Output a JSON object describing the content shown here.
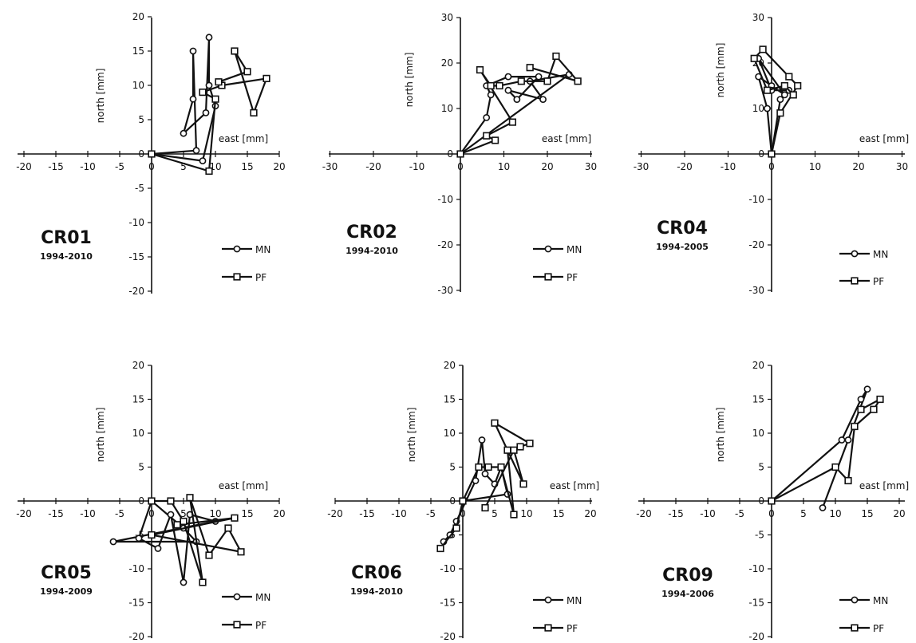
{
  "chart_data": [
    {
      "type": "line",
      "station": "CR01",
      "period": "1994-2010",
      "xlabel": "east [mm]",
      "ylabel": "north [mm]",
      "xlim": [
        -20,
        20
      ],
      "ylim": [
        -20,
        20
      ],
      "xticks": [
        -20,
        -15,
        -10,
        -5,
        0,
        5,
        10,
        15,
        20
      ],
      "yticks": [
        -20,
        -15,
        -10,
        -5,
        0,
        5,
        10,
        15,
        20
      ],
      "legend": "bottom-right",
      "series": [
        {
          "name": "MN",
          "marker": "circle",
          "points": [
            [
              0,
              0
            ],
            [
              7,
              0.5
            ],
            [
              6.5,
              15
            ],
            [
              6.5,
              8
            ],
            [
              5,
              3
            ],
            [
              8.5,
              6
            ],
            [
              9,
              17
            ],
            [
              9,
              10
            ],
            [
              10,
              7
            ],
            [
              8,
              -1
            ],
            [
              0,
              0
            ]
          ]
        },
        {
          "name": "PF",
          "marker": "square",
          "points": [
            [
              0,
              0
            ],
            [
              9,
              -2.5
            ],
            [
              10,
              8
            ],
            [
              8,
              9
            ],
            [
              11,
              10
            ],
            [
              18,
              11
            ],
            [
              16,
              6
            ],
            [
              13,
              15
            ],
            [
              15,
              12
            ],
            [
              10.5,
              10.5
            ]
          ]
        }
      ]
    },
    {
      "type": "line",
      "station": "CR02",
      "period": "1994-2010",
      "xlabel": "east [mm]",
      "ylabel": "north [mm]",
      "xlim": [
        -30,
        30
      ],
      "ylim": [
        -30,
        30
      ],
      "xticks": [
        -30,
        -20,
        -10,
        0,
        10,
        20,
        30
      ],
      "yticks": [
        -30,
        -20,
        -10,
        0,
        10,
        20,
        30
      ],
      "legend": "bottom-right",
      "series": [
        {
          "name": "MN",
          "marker": "circle",
          "points": [
            [
              0,
              0
            ],
            [
              6,
              8
            ],
            [
              7,
              13
            ],
            [
              6,
              15
            ],
            [
              11,
              17
            ],
            [
              18,
              17
            ],
            [
              13,
              12
            ],
            [
              11,
              14
            ],
            [
              19,
              12
            ],
            [
              16,
              16
            ],
            [
              25,
              17.5
            ],
            [
              0,
              0
            ]
          ]
        },
        {
          "name": "PF",
          "marker": "square",
          "points": [
            [
              0,
              0
            ],
            [
              8,
              3
            ],
            [
              6,
              4
            ],
            [
              12,
              7
            ],
            [
              4.5,
              18.5
            ],
            [
              7,
              15
            ],
            [
              9,
              15
            ],
            [
              14,
              16
            ],
            [
              20,
              16
            ],
            [
              22,
              21.5
            ],
            [
              27,
              16
            ],
            [
              16,
              19
            ]
          ]
        }
      ]
    },
    {
      "type": "line",
      "station": "CR04",
      "period": "1994-2005",
      "xlabel": "east [mm]",
      "ylabel": "north [mm]",
      "xlim": [
        -30,
        30
      ],
      "ylim": [
        -30,
        30
      ],
      "xticks": [
        -30,
        -20,
        -10,
        0,
        10,
        20,
        30
      ],
      "yticks": [
        -30,
        -20,
        -10,
        0,
        10,
        20,
        30
      ],
      "legend": "bottom-right",
      "series": [
        {
          "name": "MN",
          "marker": "circle",
          "points": [
            [
              0,
              0
            ],
            [
              -1,
              10
            ],
            [
              -3,
              17
            ],
            [
              0,
              15
            ],
            [
              3,
              13
            ],
            [
              -3,
              21
            ],
            [
              0,
              14
            ],
            [
              4,
              14
            ],
            [
              2,
              12
            ],
            [
              0,
              0
            ]
          ]
        },
        {
          "name": "PF",
          "marker": "square",
          "points": [
            [
              0,
              0
            ],
            [
              2,
              9
            ],
            [
              6,
              15
            ],
            [
              4,
              17
            ],
            [
              -2,
              23
            ],
            [
              -4,
              21
            ],
            [
              -1,
              14
            ],
            [
              3,
              15
            ],
            [
              5,
              13
            ]
          ]
        }
      ]
    },
    {
      "type": "line",
      "station": "CR05",
      "period": "1994-2009",
      "xlabel": "east [mm]",
      "ylabel": "north [mm]",
      "xlim": [
        -20,
        20
      ],
      "ylim": [
        -20,
        20
      ],
      "xticks": [
        -20,
        -15,
        -10,
        -5,
        0,
        5,
        10,
        15,
        20
      ],
      "yticks": [
        -20,
        -15,
        -10,
        -5,
        0,
        5,
        10,
        15,
        20
      ],
      "legend": "bottom-right",
      "series": [
        {
          "name": "MN",
          "marker": "circle",
          "points": [
            [
              0,
              0
            ],
            [
              -2,
              -5.5
            ],
            [
              1,
              -7
            ],
            [
              3,
              -2
            ],
            [
              5,
              -12
            ],
            [
              6,
              -2
            ],
            [
              10,
              -3
            ],
            [
              -6,
              -6
            ],
            [
              7,
              -6
            ],
            [
              5,
              -4
            ],
            [
              0,
              0
            ]
          ]
        },
        {
          "name": "PF",
          "marker": "square",
          "points": [
            [
              0,
              0
            ],
            [
              3,
              0
            ],
            [
              5,
              -3
            ],
            [
              8,
              -12
            ],
            [
              6,
              0.5
            ],
            [
              9,
              -8
            ],
            [
              12,
              -4
            ],
            [
              14,
              -7.5
            ],
            [
              0,
              -5
            ],
            [
              13,
              -2.5
            ],
            [
              4,
              -3.5
            ]
          ]
        }
      ]
    },
    {
      "type": "line",
      "station": "CR06",
      "period": "1994-2010",
      "xlabel": "east [mm]",
      "ylabel": "north [mm]",
      "xlim": [
        -20,
        20
      ],
      "ylim": [
        -20,
        20
      ],
      "xticks": [
        -20,
        -15,
        -10,
        -5,
        0,
        5,
        10,
        15,
        20
      ],
      "yticks": [
        -20,
        -15,
        -10,
        -5,
        0,
        5,
        10,
        15,
        20
      ],
      "legend": "bottom-right",
      "series": [
        {
          "name": "MN",
          "marker": "circle",
          "points": [
            [
              -3,
              -6
            ],
            [
              -2,
              -5
            ],
            [
              -1,
              -3
            ],
            [
              2,
              3
            ],
            [
              3,
              9
            ],
            [
              3.5,
              4
            ],
            [
              5,
              2.5
            ],
            [
              6,
              5
            ],
            [
              7,
              1
            ],
            [
              0,
              0
            ]
          ]
        },
        {
          "name": "PF",
          "marker": "square",
          "points": [
            [
              -3.5,
              -7
            ],
            [
              -1,
              -4
            ],
            [
              0,
              0
            ],
            [
              2.5,
              5
            ],
            [
              4,
              5
            ],
            [
              6,
              5
            ],
            [
              8,
              -2
            ],
            [
              7,
              7.5
            ],
            [
              9,
              8
            ],
            [
              10.5,
              8.5
            ],
            [
              5,
              11.5
            ],
            [
              9.5,
              2.5
            ],
            [
              8,
              7.5
            ],
            [
              3.5,
              -1
            ]
          ]
        }
      ]
    },
    {
      "type": "line",
      "station": "CR09",
      "period": "1994-2006",
      "xlabel": "east [mm]",
      "ylabel": "north [mm]",
      "xlim": [
        -20,
        20
      ],
      "ylim": [
        -20,
        20
      ],
      "xticks": [
        -20,
        -15,
        -10,
        -5,
        0,
        5,
        10,
        15,
        20
      ],
      "yticks": [
        -20,
        -15,
        -10,
        -5,
        0,
        5,
        10,
        15,
        20
      ],
      "legend": "bottom-right",
      "series": [
        {
          "name": "MN",
          "marker": "circle",
          "points": [
            [
              0,
              0
            ],
            [
              11,
              9
            ],
            [
              14,
              15
            ],
            [
              15,
              16.5
            ],
            [
              12,
              9
            ],
            [
              8,
              -1
            ]
          ]
        },
        {
          "name": "PF",
          "marker": "square",
          "points": [
            [
              0,
              0
            ],
            [
              10,
              5
            ],
            [
              12,
              3
            ],
            [
              13,
              11
            ],
            [
              16,
              13.5
            ],
            [
              17,
              15
            ],
            [
              14,
              13.5
            ]
          ]
        }
      ]
    }
  ]
}
